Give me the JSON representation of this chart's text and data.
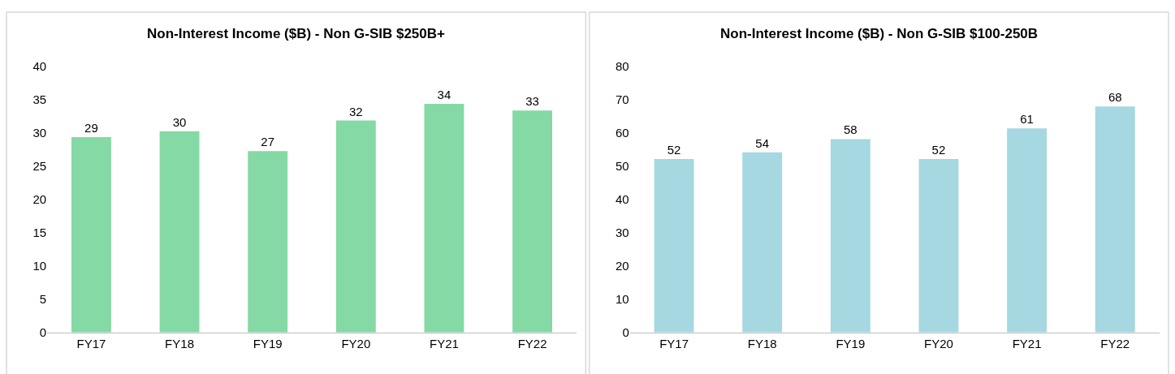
{
  "chart_data": [
    {
      "type": "bar",
      "title": "Non-Interest Income ($B) - Non G-SIB $250B+",
      "categories": [
        "FY17",
        "FY18",
        "FY19",
        "FY20",
        "FY21",
        "FY22"
      ],
      "values": [
        29.4,
        30.3,
        27.3,
        31.9,
        34.4,
        33.4
      ],
      "value_labels": [
        "29",
        "30",
        "27",
        "32",
        "34",
        "33"
      ],
      "color": "#84d9a4",
      "ylim": [
        0,
        40
      ],
      "yticks": [
        0,
        5,
        10,
        15,
        20,
        25,
        30,
        35,
        40
      ],
      "grid": false,
      "legend": false
    },
    {
      "type": "bar",
      "title": "Non-Interest Income ($B) - Non G-SIB $100-250B",
      "categories": [
        "FY17",
        "FY18",
        "FY19",
        "FY20",
        "FY21",
        "FY22"
      ],
      "values": [
        52.2,
        54.2,
        58.2,
        52.2,
        61.4,
        68.0
      ],
      "value_labels": [
        "52",
        "54",
        "58",
        "52",
        "61",
        "68"
      ],
      "color": "#a5d8e0",
      "ylim": [
        0,
        80
      ],
      "yticks": [
        0,
        10,
        20,
        30,
        40,
        50,
        60,
        70,
        80
      ],
      "grid": false,
      "legend": false
    }
  ]
}
